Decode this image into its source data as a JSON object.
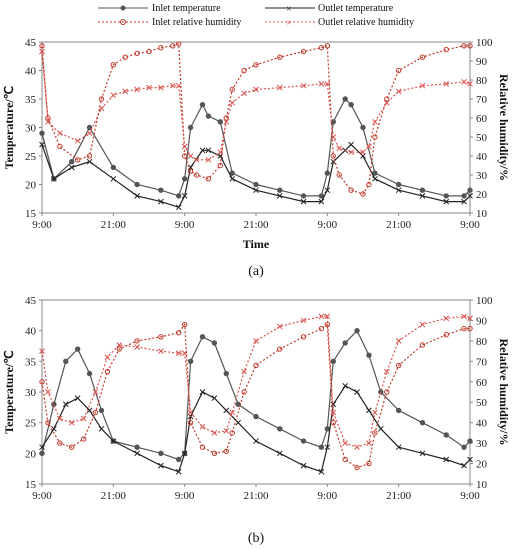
{
  "legend": [
    {
      "label": "Inlet temperature",
      "color": "#555555",
      "marker": "circle",
      "dash": false
    },
    {
      "label": "Outlet temperature",
      "color": "#222222",
      "marker": "x",
      "dash": false
    },
    {
      "label": "Inlet relative humidity",
      "color": "#c0392b",
      "marker": "circle",
      "dash": true
    },
    {
      "label": "Outlet relative humidity",
      "color": "#d9534f",
      "marker": "x",
      "dash": true
    }
  ],
  "chart_data": [
    {
      "type": "line",
      "panel_label": "(a)",
      "xlabel": "Time",
      "ylabel": "Temperature/℃",
      "y2label": "Relative humidity/%",
      "xticks": [
        "9:00",
        "21:00",
        "9:00",
        "21:00",
        "9:00",
        "21:00",
        "9:00"
      ],
      "x_hours": [
        0,
        72
      ],
      "ylim": [
        15,
        45
      ],
      "yticks": [
        15,
        20,
        25,
        30,
        35,
        40,
        45
      ],
      "y2lim": [
        10,
        100
      ],
      "y2ticks": [
        10,
        20,
        30,
        40,
        50,
        60,
        70,
        80,
        90,
        100
      ],
      "grid": false,
      "series": [
        {
          "name": "Inlet temperature",
          "axis": "left",
          "x": [
            0,
            2,
            5,
            8,
            12,
            16,
            20,
            23,
            24,
            25,
            27,
            28,
            30,
            32,
            36,
            40,
            44,
            47,
            48,
            49,
            51,
            52,
            54,
            56,
            60,
            64,
            68,
            71,
            72
          ],
          "y": [
            29,
            21,
            24,
            30,
            23,
            20,
            19,
            18,
            21,
            30,
            34,
            32,
            31,
            22,
            20,
            19,
            18,
            18,
            22,
            31,
            35,
            34,
            30,
            22,
            20,
            19,
            18,
            18,
            19
          ]
        },
        {
          "name": "Outlet temperature",
          "axis": "left",
          "x": [
            0,
            2,
            5,
            8,
            12,
            16,
            20,
            23,
            24,
            25,
            27,
            28,
            30,
            32,
            36,
            40,
            44,
            47,
            48,
            49,
            51,
            52,
            54,
            56,
            60,
            64,
            68,
            71,
            72
          ],
          "y": [
            27,
            21,
            23,
            24,
            21,
            18,
            17,
            16,
            18,
            23,
            26,
            26,
            25,
            21,
            19,
            18,
            17,
            17,
            19,
            24,
            26,
            27,
            25,
            21,
            19,
            18,
            17,
            17,
            18
          ]
        },
        {
          "name": "Inlet relative humidity",
          "axis": "right",
          "x": [
            0,
            1,
            3,
            6,
            8,
            10,
            12,
            14,
            16,
            18,
            20,
            22,
            23,
            24,
            25,
            26,
            28,
            30,
            31,
            32,
            34,
            36,
            40,
            44,
            47,
            48,
            49,
            50,
            52,
            54,
            55,
            56,
            58,
            60,
            64,
            68,
            71,
            72
          ],
          "y": [
            98,
            60,
            45,
            38,
            40,
            70,
            88,
            92,
            94,
            95,
            97,
            98,
            99,
            40,
            32,
            30,
            28,
            35,
            60,
            75,
            85,
            88,
            92,
            95,
            97,
            98,
            40,
            30,
            22,
            20,
            25,
            50,
            70,
            85,
            92,
            96,
            98,
            98
          ]
        },
        {
          "name": "Outlet relative humidity",
          "axis": "right",
          "x": [
            0,
            1,
            3,
            6,
            8,
            10,
            12,
            14,
            16,
            18,
            20,
            22,
            23,
            24,
            25,
            26,
            28,
            30,
            31,
            32,
            34,
            36,
            40,
            44,
            47,
            48,
            49,
            50,
            52,
            54,
            55,
            56,
            58,
            60,
            64,
            68,
            71,
            72
          ],
          "y": [
            95,
            58,
            52,
            48,
            52,
            65,
            72,
            74,
            75,
            76,
            76,
            77,
            77,
            45,
            40,
            38,
            38,
            42,
            58,
            68,
            73,
            75,
            76,
            77,
            78,
            78,
            50,
            44,
            42,
            42,
            45,
            58,
            68,
            74,
            77,
            78,
            79,
            78
          ]
        }
      ]
    },
    {
      "type": "line",
      "panel_label": "(b)",
      "xlabel": "",
      "ylabel": "Temperature/℃",
      "y2label": "Relative humidity/%",
      "xticks": [
        "9:00",
        "21:00",
        "9:00",
        "21:00",
        "9:00",
        "21:00",
        "9:00"
      ],
      "x_hours": [
        0,
        72
      ],
      "ylim": [
        15,
        45
      ],
      "yticks": [
        15,
        20,
        25,
        30,
        35,
        40,
        45
      ],
      "y2lim": [
        10,
        100
      ],
      "y2ticks": [
        10,
        20,
        30,
        40,
        50,
        60,
        70,
        80,
        90,
        100
      ],
      "grid": false,
      "series": [
        {
          "name": "Inlet temperature",
          "axis": "left",
          "x": [
            0,
            2,
            4,
            6,
            8,
            10,
            12,
            16,
            20,
            23,
            24,
            25,
            27,
            29,
            31,
            33,
            36,
            40,
            44,
            47,
            48,
            49,
            51,
            53,
            55,
            57,
            60,
            64,
            68,
            71,
            72
          ],
          "y": [
            20,
            28,
            35,
            37,
            33,
            27,
            22,
            21,
            20,
            19,
            20,
            35,
            39,
            38,
            33,
            28,
            26,
            24,
            22,
            21,
            24,
            35,
            38,
            40,
            36,
            30,
            27,
            25,
            23,
            21,
            22
          ]
        },
        {
          "name": "Outlet temperature",
          "axis": "left",
          "x": [
            0,
            2,
            4,
            6,
            8,
            10,
            12,
            16,
            20,
            23,
            24,
            25,
            27,
            29,
            31,
            33,
            36,
            40,
            44,
            47,
            48,
            49,
            51,
            53,
            55,
            57,
            60,
            64,
            68,
            71,
            72
          ],
          "y": [
            21,
            24,
            28,
            29,
            27,
            24,
            22,
            20,
            18,
            17,
            20,
            26,
            30,
            29,
            27,
            25,
            22,
            20,
            18,
            17,
            21,
            28,
            31,
            30,
            27,
            24,
            21,
            20,
            19,
            18,
            19
          ]
        },
        {
          "name": "Inlet relative humidity",
          "axis": "right",
          "x": [
            0,
            1,
            3,
            5,
            7,
            9,
            11,
            13,
            16,
            20,
            23,
            24,
            25,
            27,
            29,
            31,
            32,
            34,
            36,
            40,
            44,
            47,
            48,
            49,
            51,
            53,
            55,
            56,
            58,
            60,
            64,
            68,
            71,
            72
          ],
          "y": [
            60,
            40,
            30,
            28,
            32,
            45,
            65,
            76,
            80,
            82,
            84,
            88,
            40,
            28,
            25,
            26,
            35,
            55,
            68,
            76,
            82,
            86,
            88,
            40,
            22,
            18,
            20,
            35,
            55,
            68,
            78,
            83,
            86,
            86
          ]
        },
        {
          "name": "Outlet relative humidity",
          "axis": "right",
          "x": [
            0,
            1,
            3,
            5,
            7,
            9,
            11,
            13,
            16,
            20,
            23,
            24,
            25,
            27,
            29,
            31,
            32,
            34,
            36,
            40,
            44,
            47,
            48,
            49,
            51,
            53,
            55,
            56,
            58,
            60,
            64,
            68,
            71,
            72
          ],
          "y": [
            75,
            55,
            42,
            40,
            42,
            55,
            72,
            78,
            77,
            75,
            74,
            74,
            45,
            38,
            35,
            36,
            45,
            65,
            80,
            87,
            90,
            92,
            92,
            45,
            30,
            28,
            30,
            45,
            65,
            80,
            88,
            91,
            92,
            91
          ]
        }
      ]
    }
  ]
}
